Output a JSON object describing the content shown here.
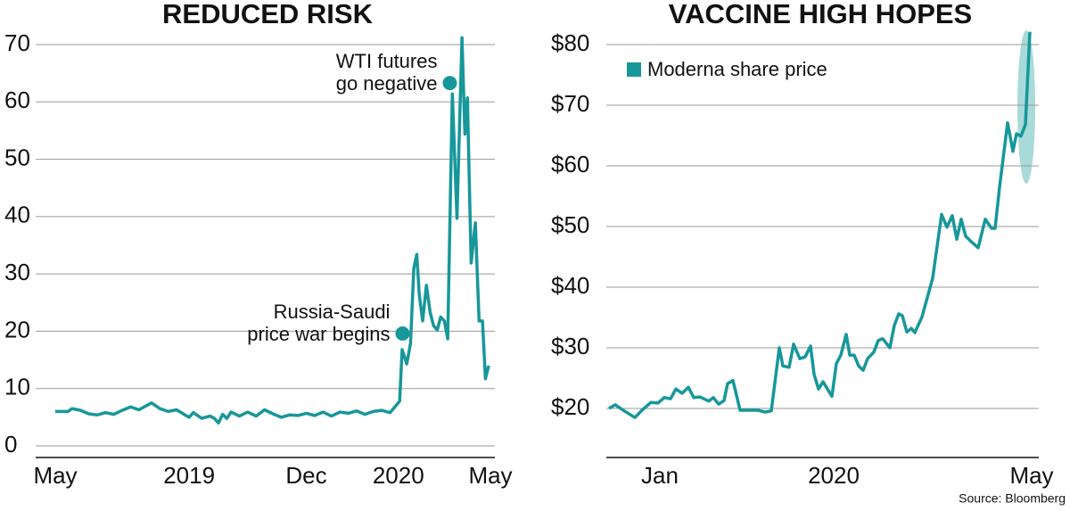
{
  "chart_data": [
    {
      "type": "line",
      "title": "REDUCED RISK",
      "x": [
        0,
        3,
        4,
        6,
        8,
        10,
        12,
        14,
        16,
        18,
        20,
        23,
        25,
        27,
        29,
        31,
        32,
        33,
        35,
        37,
        38,
        39,
        40,
        41,
        42,
        44,
        46,
        48,
        50,
        52,
        54,
        56,
        58,
        60,
        62,
        64,
        66,
        68,
        70,
        72,
        74,
        76,
        78,
        80,
        82.3,
        82.9,
        84,
        84.9,
        85.7,
        86.4,
        87,
        87.8,
        88.7,
        89.6,
        90.4,
        91.3,
        92.1,
        93,
        93.8,
        94.9,
        96,
        97.2,
        97.9,
        98.5,
        99.4,
        100.4,
        101.3,
        102.1,
        102.8,
        103.6
      ],
      "series": [
        {
          "color": "#17979a",
          "values": [
            6,
            6,
            6.5,
            6.2,
            5.6,
            5.4,
            5.8,
            5.5,
            6.2,
            6.8,
            6.3,
            7.5,
            6.5,
            6,
            6.3,
            5.4,
            5,
            5.8,
            4.8,
            5.2,
            4.8,
            4,
            5.5,
            4.8,
            5.9,
            5.2,
            5.9,
            5.2,
            6.3,
            5.6,
            5,
            5.4,
            5.3,
            5.7,
            5.3,
            5.9,
            5.2,
            5.9,
            5.7,
            6.1,
            5.5,
            6,
            6.2,
            5.8,
            7.8,
            16.8,
            14.3,
            17.9,
            31,
            33.4,
            26.4,
            21.8,
            28,
            23.3,
            21,
            20.2,
            22.5,
            21.8,
            18.7,
            61.4,
            39.7,
            71.2,
            54.4,
            60.7,
            31.9,
            38.9,
            21.8,
            21.8,
            11.7,
            14
          ]
        }
      ],
      "xlim": [
        0,
        104
      ],
      "xticks": [
        {
          "value": 0,
          "label": "May"
        },
        {
          "value": 32,
          "label": "2019"
        },
        {
          "value": 60,
          "label": "Dec"
        },
        {
          "value": 82,
          "label": "2020"
        },
        {
          "value": 104,
          "label": "May"
        }
      ],
      "ylim": [
        0,
        70
      ],
      "yticks": [
        0,
        10,
        20,
        30,
        40,
        50,
        60,
        70
      ],
      "grid": true,
      "annotations": [
        {
          "text": [
            "WTI futures",
            "go negative"
          ],
          "x": 94.3,
          "y": 63.3
        },
        {
          "text": [
            "Russia-Saudi",
            "price war begins"
          ],
          "x": 83,
          "y": 19.6
        }
      ]
    },
    {
      "type": "line",
      "title": "VACCINE HIGH HOPES",
      "x": [
        0,
        1.75,
        4.25,
        7.25,
        9.25,
        11.75,
        13.75,
        15.5,
        17.25,
        18.75,
        20.5,
        22.25,
        23.75,
        25.5,
        28,
        29.25,
        30.75,
        32.25,
        33.25,
        34.75,
        36.75,
        41.75,
        43.75,
        45.5,
        47.75,
        48.75,
        50.5,
        51.75,
        53.5,
        55,
        56.5,
        57.5,
        58.75,
        60,
        62.5,
        63.75,
        65,
        66.5,
        67.5,
        68.75,
        70,
        71.25,
        72.5,
        74.25,
        75.5,
        76.75,
        78.75,
        80,
        81.25,
        82.25,
        83.5,
        84.75,
        85.75,
        87.75,
        90.75,
        93.25,
        94.75,
        96.25,
        97.5,
        98.75,
        100,
        101.75,
        103.5,
        105.5,
        107.25,
        108.25,
        109.5,
        111.75,
        113.25,
        114.25,
        115.5,
        116.75,
        118
      ],
      "series": [
        {
          "name": "Moderna share price",
          "color": "#17979a",
          "values": [
            20,
            20.6,
            19.6,
            18.5,
            19.7,
            21,
            20.9,
            21.8,
            21.6,
            23.2,
            22.5,
            23.5,
            21.8,
            21.9,
            21.2,
            21.8,
            20.7,
            21.3,
            24.1,
            24.6,
            19.7,
            19.7,
            19.4,
            19.6,
            30,
            27,
            26.8,
            30.6,
            28.2,
            28.5,
            30.3,
            25.6,
            23.2,
            24.4,
            22,
            27.4,
            28.8,
            32.2,
            28.8,
            28.8,
            27,
            26.3,
            28.2,
            29.3,
            31.2,
            31.5,
            30,
            33.7,
            35.6,
            35.3,
            32.6,
            33.2,
            32.5,
            35.1,
            41.5,
            52,
            49.9,
            51.8,
            47.9,
            51.2,
            48.4,
            47.4,
            46.5,
            51.2,
            49.7,
            49.7,
            56.5,
            67.1,
            62.4,
            65.3,
            64.9,
            66.8,
            82.1
          ]
        }
      ],
      "xlim": [
        0,
        118.5
      ],
      "xticks": [
        {
          "value": 14.25,
          "label": "Jan"
        },
        {
          "value": 63,
          "label": "2020"
        },
        {
          "value": 118.5,
          "label": "May"
        }
      ],
      "ylim": [
        20,
        80
      ],
      "yticks": [
        {
          "value": 20,
          "label": "$20"
        },
        {
          "value": 30,
          "label": "$30"
        },
        {
          "value": 40,
          "label": "$40"
        },
        {
          "value": 50,
          "label": "$50"
        },
        {
          "value": 60,
          "label": "$60"
        },
        {
          "value": 70,
          "label": "$70"
        },
        {
          "value": 80,
          "label": "$80"
        }
      ],
      "grid": true,
      "legend": "top-left"
    }
  ],
  "source": "Source: Bloomberg"
}
